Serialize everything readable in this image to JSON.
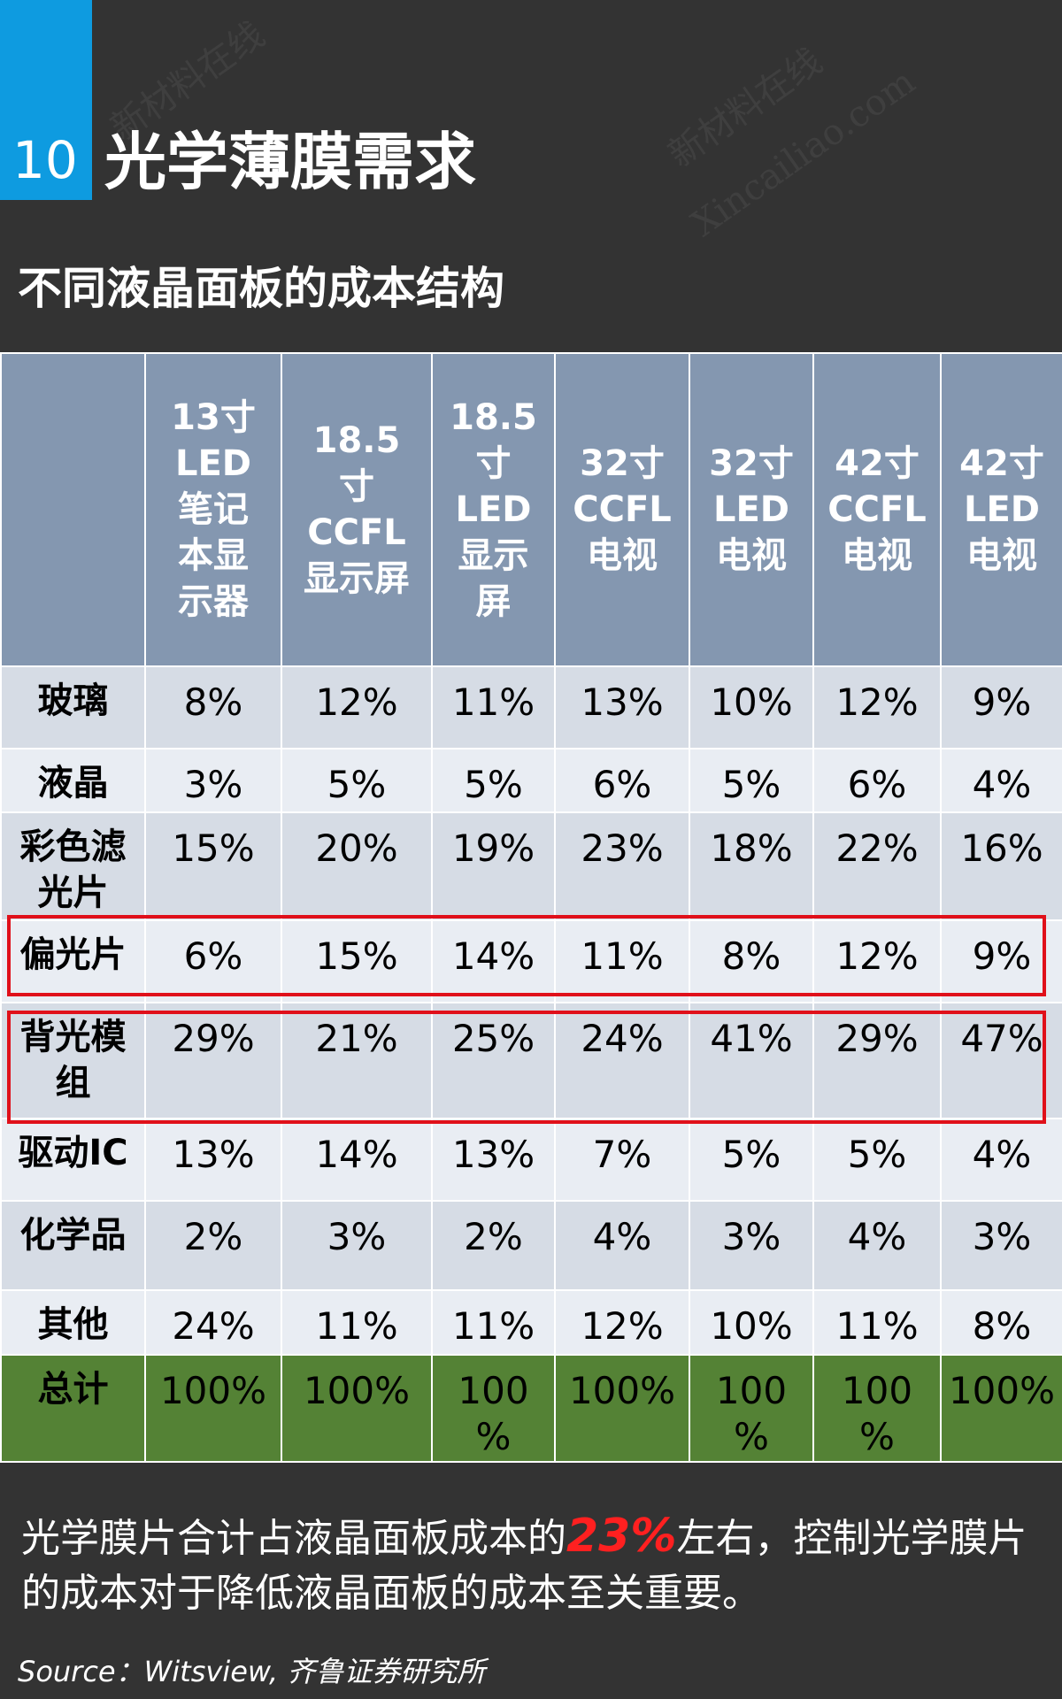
{
  "header": {
    "number": "10",
    "title": "光学薄膜需求",
    "subtitle": "不同液晶面板的成本结构",
    "accent_color": "#0E9BE0",
    "watermark_1": "新材料在线",
    "watermark_2": "Xincailiao.com"
  },
  "table": {
    "columns": [
      "13寸\nLED\n笔记\n本显\n示器",
      "18.5\n寸\nCCFL\n显示屏",
      "18.5\n寸\nLED\n显示\n屏",
      "32寸\nCCFL\n电视",
      "32寸\nLED\n电视",
      "42寸\nCCFL\n电视",
      "42寸\nLED\n电视"
    ],
    "rows": [
      {
        "label": "玻璃",
        "values": [
          "8%",
          "12%",
          "11%",
          "13%",
          "10%",
          "12%",
          "9%"
        ]
      },
      {
        "label": "液晶",
        "values": [
          "3%",
          "5%",
          "5%",
          "6%",
          "5%",
          "6%",
          "4%"
        ]
      },
      {
        "label": "彩色滤\n光片",
        "values": [
          "15%",
          "20%",
          "19%",
          "23%",
          "18%",
          "22%",
          "16%"
        ]
      },
      {
        "label": "偏光片",
        "values": [
          "6%",
          "15%",
          "14%",
          "11%",
          "8%",
          "12%",
          "9%"
        ]
      },
      {
        "label": "背光模\n组",
        "values": [
          "29%",
          "21%",
          "25%",
          "24%",
          "41%",
          "29%",
          "47%"
        ]
      },
      {
        "label": "驱动IC",
        "values": [
          "13%",
          "14%",
          "13%",
          "7%",
          "5%",
          "5%",
          "4%"
        ]
      },
      {
        "label": "化学品",
        "values": [
          "2%",
          "3%",
          "2%",
          "4%",
          "3%",
          "4%",
          "3%"
        ]
      },
      {
        "label": "其他",
        "values": [
          "24%",
          "11%",
          "11%",
          "12%",
          "10%",
          "11%",
          "8%"
        ]
      },
      {
        "label": "总计",
        "values": [
          "100%",
          "100%",
          "100\n%",
          "100%",
          "100\n%",
          "100\n%",
          "100%"
        ]
      }
    ],
    "highlight_color": "#E0101A",
    "total_row_color": "#548235"
  },
  "footer": {
    "text_before": "光学膜片合计占液晶面板成本的",
    "highlight": "23%",
    "text_after": "左右，控制光学膜片的成本对于降低液晶面板的成本至关重要。",
    "source": "Source：Witsview, 齐鲁证券研究所"
  }
}
